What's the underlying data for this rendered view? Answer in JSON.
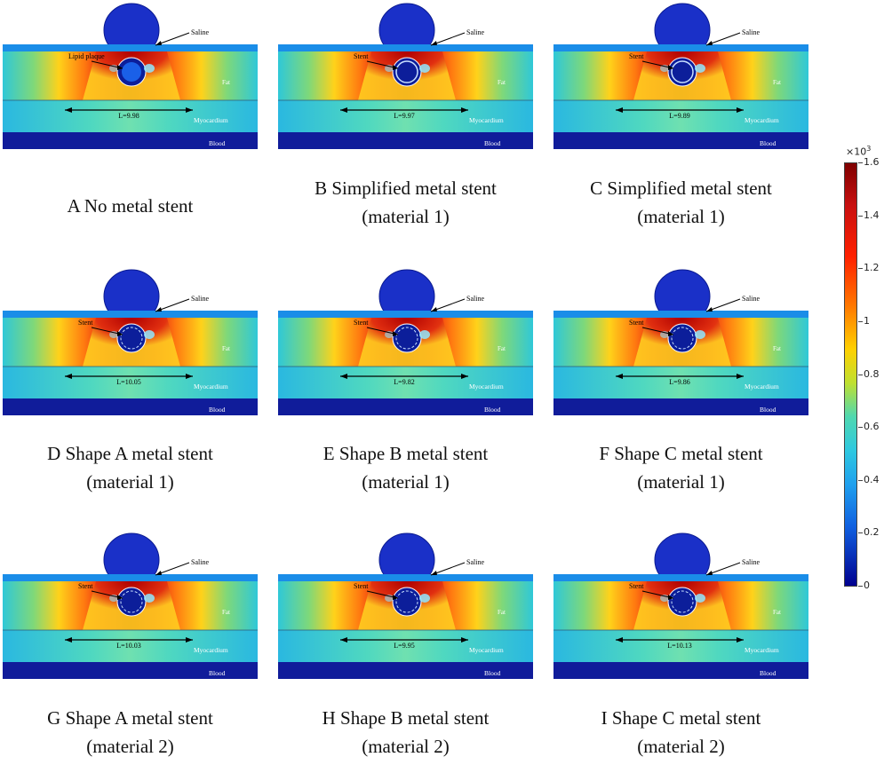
{
  "panels": [
    {
      "id": "A",
      "caption_line1": "A No metal stent",
      "caption_line2": "",
      "pointer_label": "Lipid plaque",
      "length_label": "L=9.98",
      "saline_label": "Saline",
      "fat_label": "Fat",
      "myocardium_label": "Myocardium",
      "blood_label": "Blood",
      "stent": "none"
    },
    {
      "id": "B",
      "caption_line1": "B Simplified metal stent",
      "caption_line2": "(material 1)",
      "pointer_label": "Stent",
      "length_label": "L=9.97",
      "saline_label": "Saline",
      "fat_label": "Fat",
      "myocardium_label": "Myocardium",
      "blood_label": "Blood",
      "stent": "simplified"
    },
    {
      "id": "C",
      "caption_line1": "C Simplified metal stent",
      "caption_line2": "(material 1)",
      "pointer_label": "Stent",
      "length_label": "L=9.89",
      "saline_label": "Saline",
      "fat_label": "Fat",
      "myocardium_label": "Myocardium",
      "blood_label": "Blood",
      "stent": "simplified"
    },
    {
      "id": "D",
      "caption_line1": "D Shape A metal stent",
      "caption_line2": "(material 1)",
      "pointer_label": "Stent",
      "length_label": "L=10.05",
      "saline_label": "Saline",
      "fat_label": "Fat",
      "myocardium_label": "Myocardium",
      "blood_label": "Blood",
      "stent": "shaped"
    },
    {
      "id": "E",
      "caption_line1": "E Shape B metal stent",
      "caption_line2": "(material 1)",
      "pointer_label": "Stent",
      "length_label": "L=9.82",
      "saline_label": "Saline",
      "fat_label": "Fat",
      "myocardium_label": "Myocardium",
      "blood_label": "Blood",
      "stent": "shaped"
    },
    {
      "id": "F",
      "caption_line1": "F Shape C metal stent",
      "caption_line2": "(material 1)",
      "pointer_label": "Stent",
      "length_label": "L=9.86",
      "saline_label": "Saline",
      "fat_label": "Fat",
      "myocardium_label": "Myocardium",
      "blood_label": "Blood",
      "stent": "shaped"
    },
    {
      "id": "G",
      "caption_line1": "G Shape A metal stent",
      "caption_line2": "(material 2)",
      "pointer_label": "Stent",
      "length_label": "L=10.03",
      "saline_label": "Saline",
      "fat_label": "Fat",
      "myocardium_label": "Myocardium",
      "blood_label": "Blood",
      "stent": "shaped"
    },
    {
      "id": "H",
      "caption_line1": "H Shape B metal stent",
      "caption_line2": "(material 2)",
      "pointer_label": "Stent",
      "length_label": "L=9.95",
      "saline_label": "Saline",
      "fat_label": "Fat",
      "myocardium_label": "Myocardium",
      "blood_label": "Blood",
      "stent": "shaped"
    },
    {
      "id": "I",
      "caption_line1": "I Shape C metal stent",
      "caption_line2": "(material 2)",
      "pointer_label": "Stent",
      "length_label": "L=10.13",
      "saline_label": "Saline",
      "fat_label": "Fat",
      "myocardium_label": "Myocardium",
      "blood_label": "Blood",
      "stent": "shaped"
    }
  ],
  "colorbar": {
    "multiplier_base": "×10",
    "multiplier_exponent": "3",
    "ticks": [
      {
        "value": 1.6,
        "label": "1.6"
      },
      {
        "value": 1.4,
        "label": "1.4"
      },
      {
        "value": 1.2,
        "label": "1.2"
      },
      {
        "value": 1.0,
        "label": "1"
      },
      {
        "value": 0.8,
        "label": "0.8"
      },
      {
        "value": 0.6,
        "label": "0.6"
      },
      {
        "value": 0.4,
        "label": "0.4"
      },
      {
        "value": 0.2,
        "label": "0.2"
      },
      {
        "value": 0.0,
        "label": "0"
      }
    ],
    "min": 0,
    "max": 1.6
  }
}
